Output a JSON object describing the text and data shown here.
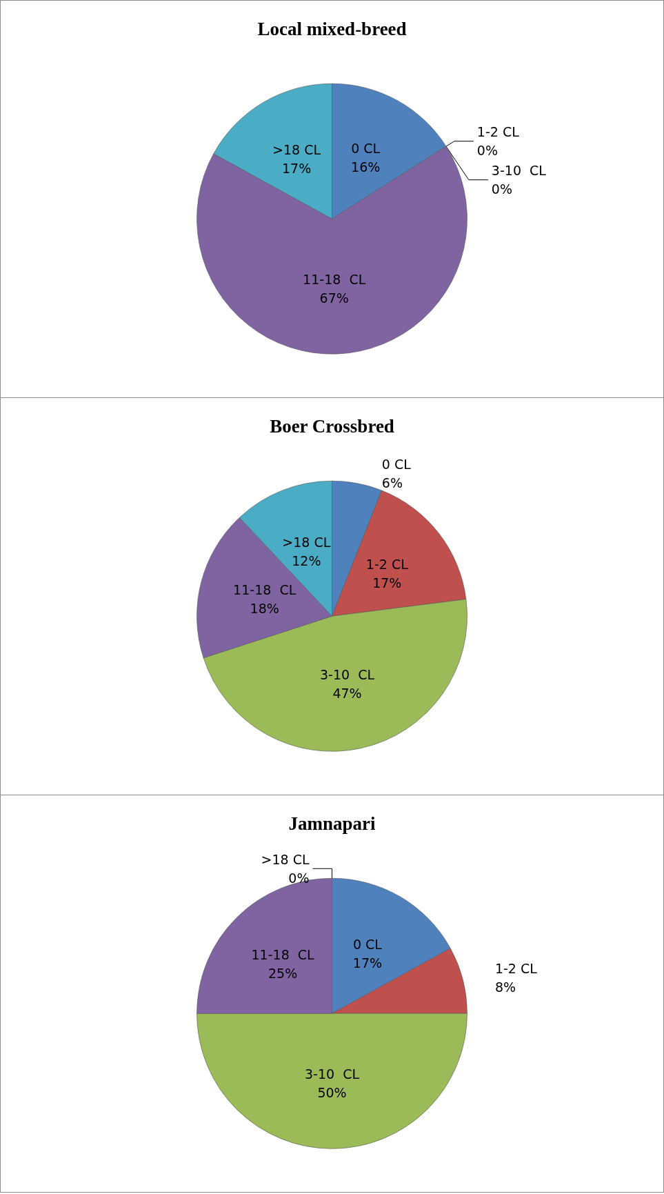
{
  "chart_data": [
    {
      "type": "pie",
      "title": "Local mixed-breed",
      "categories": [
        "0 CL",
        "1-2 CL",
        "3-10  CL",
        "11-18  CL",
        ">18 CL"
      ],
      "values": [
        16,
        0,
        0,
        67,
        17
      ],
      "value_labels": [
        "16%",
        "0%",
        "0%",
        "67%",
        "17%"
      ],
      "colors": [
        "#4f81bd",
        "#c0504d",
        "#9bbb59",
        "#8064a2",
        "#4bacc6"
      ]
    },
    {
      "type": "pie",
      "title": "Boer Crossbred",
      "categories": [
        "0 CL",
        "1-2 CL",
        "3-10  CL",
        "11-18  CL",
        ">18 CL"
      ],
      "values": [
        6,
        17,
        47,
        18,
        12
      ],
      "value_labels": [
        "6%",
        "17%",
        "47%",
        "18%",
        "12%"
      ],
      "colors": [
        "#4f81bd",
        "#c0504d",
        "#9bbb59",
        "#8064a2",
        "#4bacc6"
      ]
    },
    {
      "type": "pie",
      "title": "Jamnapari",
      "categories": [
        "0 CL",
        "1-2 CL",
        "3-10  CL",
        "11-18  CL",
        ">18 CL"
      ],
      "values": [
        17,
        8,
        50,
        25,
        0
      ],
      "value_labels": [
        "17%",
        "8%",
        "50%",
        "25%",
        "0%"
      ],
      "colors": [
        "#4f81bd",
        "#c0504d",
        "#9bbb59",
        "#8064a2",
        "#4bacc6"
      ]
    }
  ]
}
